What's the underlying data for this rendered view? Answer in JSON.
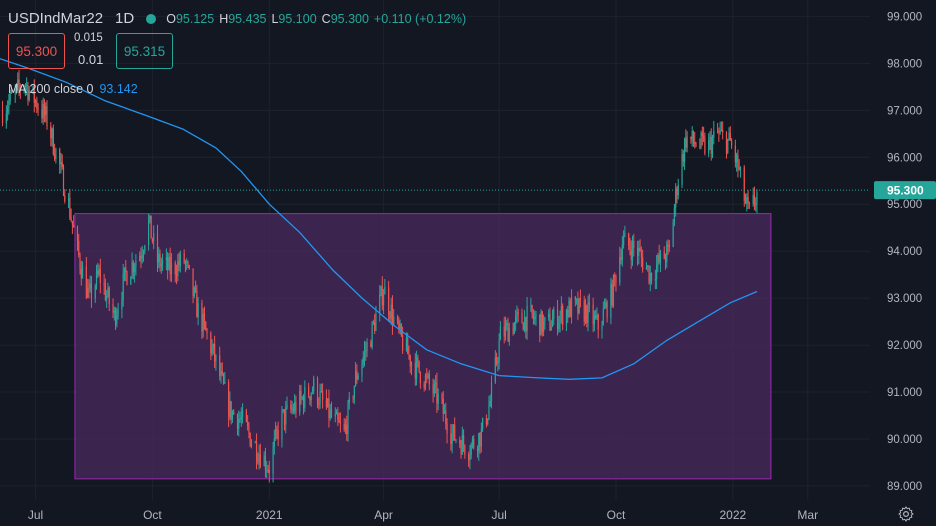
{
  "header": {
    "symbol": "USDIndMar22",
    "timeframe": "1D",
    "ohlc": [
      {
        "key": "O",
        "value": "95.125"
      },
      {
        "key": "H",
        "value": "95.435"
      },
      {
        "key": "L",
        "value": "95.100"
      },
      {
        "key": "C",
        "value": "95.300"
      }
    ],
    "change": "+0.110 (+0.12%)"
  },
  "trade": {
    "sell_price": "95.300",
    "spread_top": "0.015",
    "spread_bottom": "0.01",
    "buy_price": "95.315"
  },
  "indicator": {
    "label": "MA 200 close 0",
    "value": "93.142"
  },
  "colors": {
    "background": "#131722",
    "up": "#26a69a",
    "down": "#ef5350",
    "ma_line": "#2196f3",
    "rect_fill": "#4a2a5e",
    "rect_border": "#9c27b0",
    "text": "#d1d4dc"
  },
  "icons": [
    "gear-icon"
  ],
  "chart_data": {
    "type": "candlestick",
    "title": "USDIndMar22",
    "y_ticks": [
      "89.000",
      "90.000",
      "91.000",
      "92.000",
      "93.000",
      "94.000",
      "95.000",
      "96.000",
      "97.000",
      "98.000",
      "99.000"
    ],
    "ylim": [
      88.7,
      99.35
    ],
    "x_labels": [
      "Jul",
      "Oct",
      "2021",
      "Apr",
      "Jul",
      "Oct",
      "2022",
      "Mar"
    ],
    "x_label_dates": [
      "2020-07-01",
      "2020-10-01",
      "2021-01-01",
      "2021-04-01",
      "2021-07-01",
      "2021-10-01",
      "2022-01-01",
      "2022-03-01"
    ],
    "xlim": [
      "2020-06-03",
      "2022-04-19"
    ],
    "last_price": "95.300",
    "rectangle": {
      "start": "2020-08-01",
      "end": "2022-01-31",
      "top": 94.8,
      "bottom": 89.15
    },
    "price_path": [
      [
        "2020-06-05",
        97.0
      ],
      [
        "2020-06-22",
        97.6
      ],
      [
        "2020-07-10",
        96.8
      ],
      [
        "2020-07-20",
        95.8
      ],
      [
        "2020-07-27",
        95.0
      ],
      [
        "2020-08-03",
        94.0
      ],
      [
        "2020-08-12",
        93.0
      ],
      [
        "2020-08-20",
        93.5
      ],
      [
        "2020-09-01",
        92.6
      ],
      [
        "2020-09-10",
        93.5
      ],
      [
        "2020-09-22",
        94.0
      ],
      [
        "2020-09-28",
        94.6
      ],
      [
        "2020-10-05",
        93.8
      ],
      [
        "2020-10-15",
        93.6
      ],
      [
        "2020-10-26",
        93.8
      ],
      [
        "2020-11-05",
        92.8
      ],
      [
        "2020-11-18",
        91.8
      ],
      [
        "2020-12-01",
        90.6
      ],
      [
        "2020-12-10",
        90.4
      ],
      [
        "2020-12-20",
        89.9
      ],
      [
        "2021-01-01",
        89.4
      ],
      [
        "2021-01-10",
        90.4
      ],
      [
        "2021-01-22",
        90.7
      ],
      [
        "2021-02-05",
        91.1
      ],
      [
        "2021-02-18",
        90.5
      ],
      [
        "2021-03-01",
        90.1
      ],
      [
        "2021-03-10",
        91.3
      ],
      [
        "2021-03-22",
        92.2
      ],
      [
        "2021-04-01",
        93.2
      ],
      [
        "2021-04-12",
        92.3
      ],
      [
        "2021-04-22",
        91.7
      ],
      [
        "2021-05-03",
        91.3
      ],
      [
        "2021-05-13",
        90.9
      ],
      [
        "2021-05-25",
        90.1
      ],
      [
        "2021-06-07",
        89.8
      ],
      [
        "2021-06-17",
        90.1
      ],
      [
        "2021-06-24",
        90.8
      ],
      [
        "2021-07-02",
        92.2
      ],
      [
        "2021-07-15",
        92.5
      ],
      [
        "2021-07-26",
        92.6
      ],
      [
        "2021-08-06",
        92.4
      ],
      [
        "2021-08-16",
        92.6
      ],
      [
        "2021-08-27",
        92.8
      ],
      [
        "2021-09-08",
        92.7
      ],
      [
        "2021-09-17",
        92.4
      ],
      [
        "2021-09-28",
        93.1
      ],
      [
        "2021-10-06",
        94.2
      ],
      [
        "2021-10-18",
        94.0
      ],
      [
        "2021-10-28",
        93.5
      ],
      [
        "2021-11-05",
        93.8
      ],
      [
        "2021-11-12",
        94.0
      ],
      [
        "2021-11-18",
        95.4
      ],
      [
        "2021-11-25",
        96.4
      ],
      [
        "2021-12-03",
        96.3
      ],
      [
        "2021-12-12",
        96.2
      ],
      [
        "2021-12-20",
        96.5
      ],
      [
        "2021-12-30",
        96.3
      ],
      [
        "2022-01-05",
        95.8
      ],
      [
        "2022-01-11",
        95.0
      ],
      [
        "2022-01-14",
        94.8
      ],
      [
        "2022-01-20",
        95.2
      ]
    ],
    "series": [
      {
        "name": "MA 200 close 0",
        "points": [
          [
            "2020-06-03",
            98.1
          ],
          [
            "2020-06-25",
            97.9
          ],
          [
            "2020-07-25",
            97.6
          ],
          [
            "2020-08-25",
            97.2
          ],
          [
            "2020-09-25",
            96.9
          ],
          [
            "2020-10-25",
            96.6
          ],
          [
            "2020-11-20",
            96.2
          ],
          [
            "2020-12-10",
            95.7
          ],
          [
            "2021-01-01",
            95.0
          ],
          [
            "2021-01-25",
            94.4
          ],
          [
            "2021-02-20",
            93.6
          ],
          [
            "2021-03-15",
            93.0
          ],
          [
            "2021-04-10",
            92.4
          ],
          [
            "2021-05-05",
            91.9
          ],
          [
            "2021-06-01",
            91.6
          ],
          [
            "2021-07-01",
            91.35
          ],
          [
            "2021-08-01",
            91.3
          ],
          [
            "2021-08-25",
            91.27
          ],
          [
            "2021-09-20",
            91.3
          ],
          [
            "2021-10-15",
            91.6
          ],
          [
            "2021-11-10",
            92.1
          ],
          [
            "2021-12-05",
            92.5
          ],
          [
            "2021-12-30",
            92.9
          ],
          [
            "2022-01-20",
            93.142
          ]
        ]
      }
    ]
  }
}
